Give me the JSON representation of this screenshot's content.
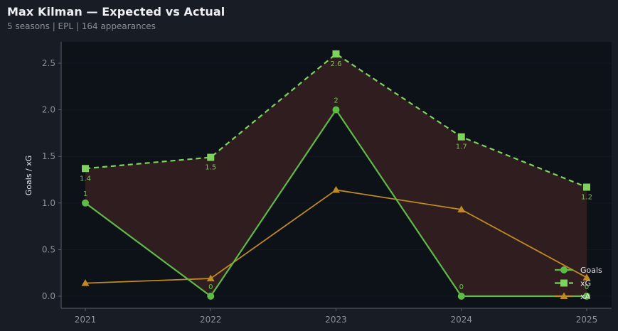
{
  "header": {
    "title": "Max Kilman — Expected vs Actual",
    "subtitle": "5 seasons | EPL | 164 appearances"
  },
  "colors": {
    "background": "#181c24",
    "plot_background": "#0d1118",
    "axis": "#5a5f68",
    "goals": "#5dbb46",
    "xg": "#7dd35e",
    "xa": "#c08a22",
    "fill": "#2f1d20",
    "label_goals": "#6cc24a",
    "label_xg": "#7fbf5a"
  },
  "chart_data": {
    "type": "line",
    "title": "Max Kilman — Expected vs Actual",
    "subtitle": "5 seasons | EPL | 164 appearances",
    "xlabel": "",
    "ylabel": "Goals / xG",
    "x": [
      "2021",
      "2022",
      "2023",
      "2024",
      "2025"
    ],
    "ylim": [
      -0.13,
      2.73
    ],
    "yticks": [
      0.0,
      0.5,
      1.0,
      1.5,
      2.0,
      2.5
    ],
    "ytick_labels": [
      "0.0",
      "0.5",
      "1.0",
      "1.5",
      "2.0",
      "2.5"
    ],
    "grid": true,
    "legend_position": "lower right",
    "fill_between": {
      "upper": "xG",
      "lower": "Goals",
      "where": "xG > Goals"
    },
    "series": [
      {
        "name": "Goals",
        "values": [
          1,
          0,
          2,
          0,
          0
        ],
        "style": "solid",
        "marker": "circle",
        "data_labels": [
          "1",
          "0",
          "2",
          "0",
          "0"
        ],
        "label_position": "above"
      },
      {
        "name": "xG",
        "values": [
          1.37,
          1.49,
          2.6,
          1.71,
          1.17
        ],
        "style": "dashed",
        "marker": "square",
        "data_labels": [
          "1.4",
          "1.5",
          "2.6",
          "1.7",
          "1.2"
        ],
        "label_position": "below"
      },
      {
        "name": "xA",
        "values": [
          0.14,
          0.19,
          1.14,
          0.93,
          0.2
        ],
        "style": "solid",
        "marker": "triangle",
        "data_labels": [],
        "label_position": "none"
      }
    ]
  }
}
